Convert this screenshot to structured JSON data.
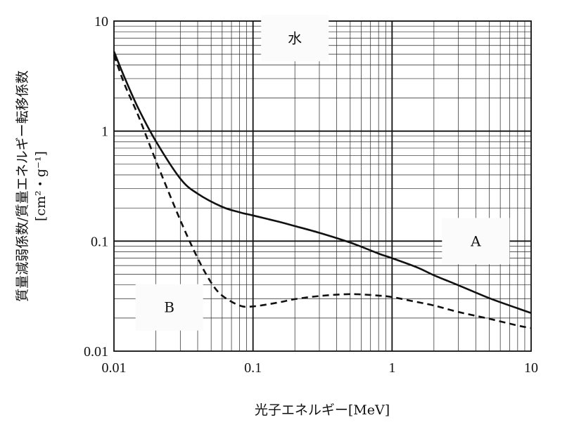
{
  "chart_data": {
    "type": "line",
    "title": "",
    "xlabel": "光子エネルギー[MeV]",
    "ylabel_line1": "質量減弱係数/質量エネルギー転移係数",
    "ylabel_line2": "[cm²・g⁻¹]",
    "xscale": "log",
    "yscale": "log",
    "xlim": [
      0.01,
      10
    ],
    "ylim": [
      0.01,
      10
    ],
    "x_ticks": [
      {
        "value": 0.01,
        "label": "0.01"
      },
      {
        "value": 0.1,
        "label": "0.1"
      },
      {
        "value": 1,
        "label": "1"
      },
      {
        "value": 10,
        "label": "10"
      }
    ],
    "y_ticks": [
      {
        "value": 0.01,
        "label": "0.01"
      },
      {
        "value": 0.1,
        "label": "0.1"
      },
      {
        "value": 1,
        "label": "1"
      },
      {
        "value": 10,
        "label": "10"
      }
    ],
    "grid": true,
    "annotations": [
      {
        "text": "水",
        "x": 0.2,
        "y": 7
      },
      {
        "text": "A",
        "x": 4.0,
        "y": 0.1
      },
      {
        "text": "B",
        "x": 0.025,
        "y": 0.025
      }
    ],
    "series": [
      {
        "label": "A",
        "style": "solid",
        "x": [
          0.01,
          0.012,
          0.015,
          0.02,
          0.03,
          0.04,
          0.06,
          0.08,
          0.1,
          0.15,
          0.2,
          0.3,
          0.5,
          0.8,
          1,
          1.5,
          2,
          3,
          5,
          8,
          10
        ],
        "y": [
          5.3,
          3.0,
          1.6,
          0.81,
          0.37,
          0.27,
          0.205,
          0.183,
          0.171,
          0.151,
          0.137,
          0.119,
          0.097,
          0.077,
          0.07,
          0.058,
          0.049,
          0.0397,
          0.0303,
          0.0245,
          0.0222
        ]
      },
      {
        "label": "B",
        "style": "dashed",
        "x": [
          0.01,
          0.012,
          0.015,
          0.02,
          0.03,
          0.04,
          0.05,
          0.06,
          0.08,
          0.1,
          0.15,
          0.2,
          0.3,
          0.5,
          0.8,
          1,
          1.5,
          2,
          3,
          5,
          8,
          10
        ],
        "y": [
          4.9,
          2.6,
          1.37,
          0.54,
          0.155,
          0.07,
          0.042,
          0.032,
          0.026,
          0.0255,
          0.0276,
          0.0297,
          0.0317,
          0.033,
          0.032,
          0.031,
          0.028,
          0.026,
          0.0227,
          0.0197,
          0.0171,
          0.0162
        ]
      }
    ]
  }
}
